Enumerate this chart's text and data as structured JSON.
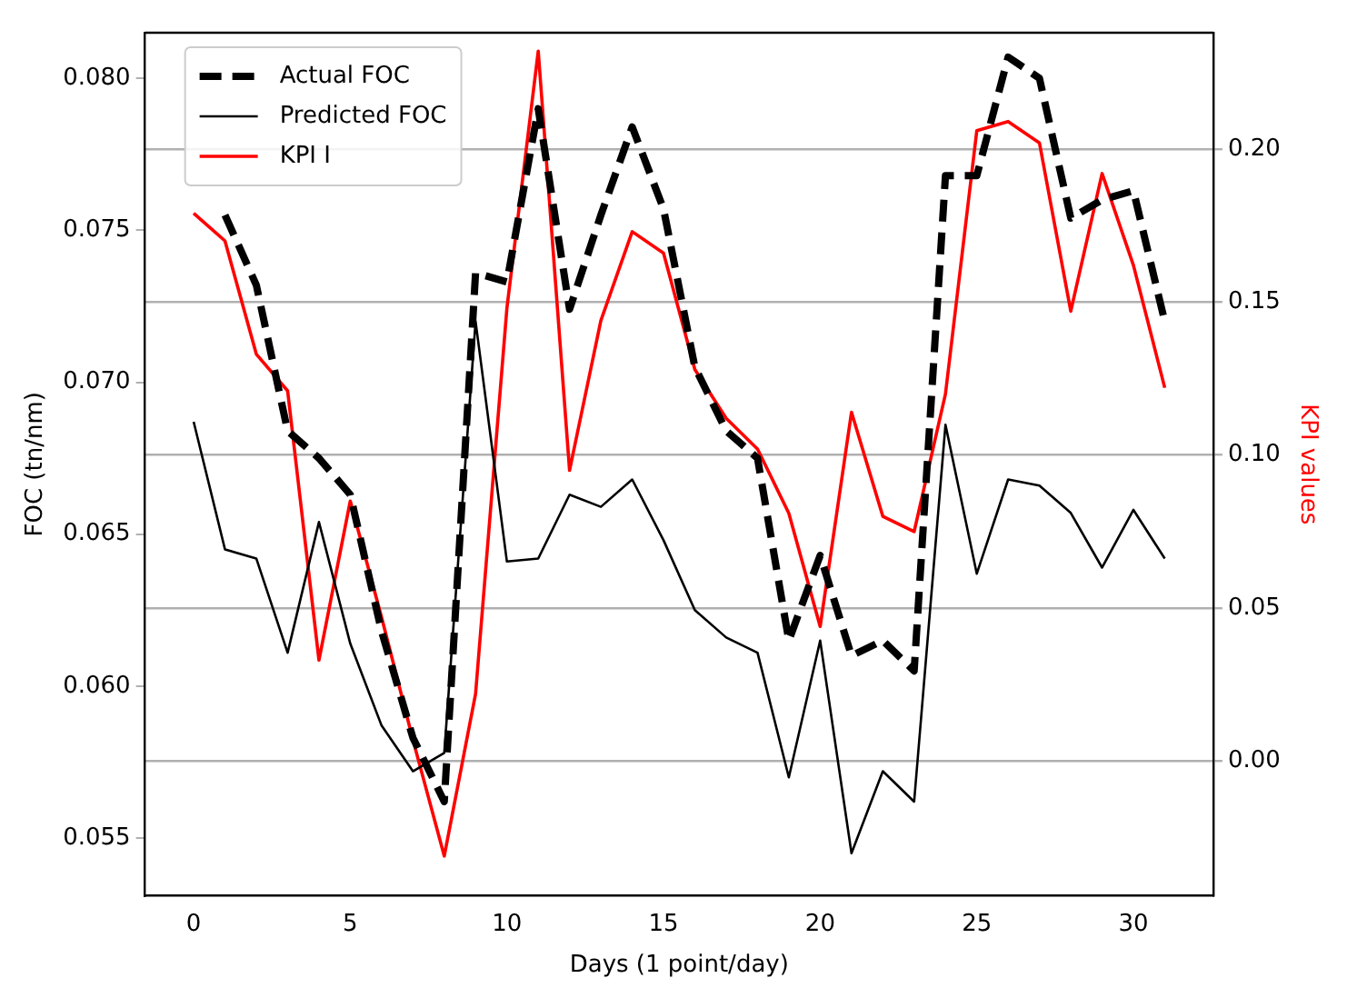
{
  "chart_data": {
    "type": "line",
    "xlabel": "Days (1 point/day)",
    "ylabel": "FOC (tn/nm)",
    "y2label": "KPI values",
    "x": [
      0,
      1,
      2,
      3,
      4,
      5,
      6,
      7,
      8,
      9,
      10,
      11,
      12,
      13,
      14,
      15,
      16,
      17,
      18,
      19,
      20,
      21,
      22,
      23,
      24,
      25,
      26,
      27,
      28,
      29,
      30,
      31
    ],
    "xlim": [
      -1.55,
      32.55
    ],
    "xticks": [
      0,
      5,
      10,
      15,
      20,
      25,
      30
    ],
    "ylim": [
      0.0531,
      0.0815
    ],
    "yticks": [
      {
        "value": 0.055,
        "label": "0.055"
      },
      {
        "value": 0.06,
        "label": "0.060"
      },
      {
        "value": 0.065,
        "label": "0.065"
      },
      {
        "value": 0.07,
        "label": "0.070"
      },
      {
        "value": 0.075,
        "label": "0.075"
      },
      {
        "value": 0.08,
        "label": "0.080"
      }
    ],
    "y2lim": [
      -0.044,
      0.238
    ],
    "y2ticks": [
      {
        "value": 0,
        "label": "0.00"
      },
      {
        "value": 0.05,
        "label": "0.05"
      },
      {
        "value": 0.1,
        "label": "0.10"
      },
      {
        "value": 0.15,
        "label": "0.15"
      },
      {
        "value": 0.2,
        "label": "0.20"
      }
    ],
    "grid": "y2",
    "legend": "top left",
    "marker": "none",
    "series": [
      {
        "name": "Actual FOC",
        "color": "#000000",
        "line_style": "dashed",
        "values": [
          null,
          0.0755,
          0.0732,
          0.0684,
          0.0675,
          0.0663,
          0.0618,
          0.0583,
          0.0562,
          0.0736,
          0.0733,
          0.079,
          0.0724,
          0.0755,
          0.0784,
          0.0757,
          0.0705,
          0.0684,
          0.0675,
          0.0615,
          0.0643,
          0.061,
          0.0615,
          0.0605,
          0.0768,
          0.0768,
          0.0807,
          0.08,
          0.0754,
          0.076,
          0.0763,
          0.072
        ]
      },
      {
        "name": "Predicted FOC",
        "color": "#000000",
        "line_style": "solid",
        "values": [
          0.0687,
          0.0645,
          0.0642,
          0.0611,
          0.0654,
          0.0614,
          0.0587,
          0.0572,
          0.0578,
          0.072,
          0.0641,
          0.0642,
          0.0663,
          0.0659,
          0.0668,
          0.0648,
          0.0625,
          0.0616,
          0.0611,
          0.057,
          0.0615,
          0.0545,
          0.0572,
          0.0562,
          0.0686,
          0.0637,
          0.0668,
          0.0666,
          0.0657,
          0.0639,
          0.0658,
          0.0642
        ]
      },
      {
        "name": "KPI I",
        "color": "#ff0000",
        "axis": "y2",
        "line_style": "solid",
        "values": [
          0.179,
          0.17,
          0.133,
          0.121,
          0.033,
          0.085,
          0.047,
          0.007,
          -0.031,
          0.022,
          0.148,
          0.232,
          0.095,
          0.144,
          0.173,
          0.166,
          0.128,
          0.112,
          0.102,
          0.081,
          0.044,
          0.114,
          0.08,
          0.075,
          0.12,
          0.206,
          0.209,
          0.202,
          0.147,
          0.192,
          0.162,
          0.122
        ]
      }
    ]
  }
}
